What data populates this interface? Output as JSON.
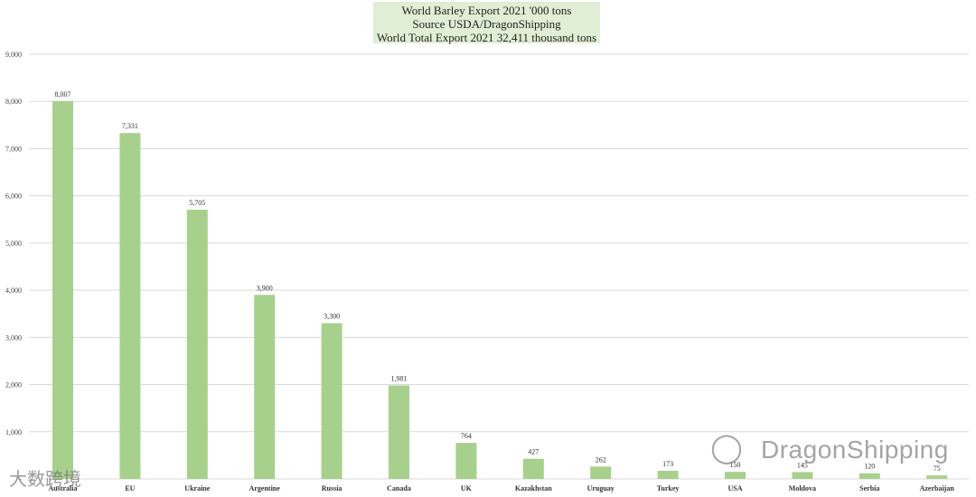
{
  "title_lines": [
    "World Barley Export 2021 '000 tons",
    "Source USDA/DragonShipping",
    "World Total Export 2021  32,411 thousand tons"
  ],
  "watermarks": {
    "brand": "DragonShipping",
    "left": "大数跨境",
    "brand_icon": "wechat-icon"
  },
  "colors": {
    "bar": "#a8d08d",
    "grid": "#d9d9d9",
    "title_bg": "#dfeed4"
  },
  "chart_data": {
    "type": "bar",
    "title": "World Barley Export 2021 '000 tons",
    "subtitle": "Source USDA/DragonShipping",
    "categories": [
      "Australia",
      "EU",
      "Ukraine",
      "Argentine",
      "Russia",
      "Canada",
      "UK",
      "Kazakhstan",
      "Uruguay",
      "Turkey",
      "USA",
      "Moldova",
      "Serbia",
      "Azerbaijan"
    ],
    "values": [
      8007,
      7331,
      5705,
      3900,
      3300,
      1981,
      764,
      427,
      262,
      173,
      150,
      145,
      120,
      75
    ],
    "value_labels": [
      "8,007",
      "7,331",
      "5,705",
      "3,900",
      "3,300",
      "1,981",
      "764",
      "427",
      "262",
      "173",
      "150",
      "145",
      "120",
      "75"
    ],
    "yticks": [
      "-",
      "1,000",
      "2,000",
      "3,000",
      "4,000",
      "5,000",
      "6,000",
      "7,000",
      "8,000",
      "9,000"
    ],
    "ylim": [
      0,
      9000
    ],
    "grid": true,
    "legend": "none"
  }
}
